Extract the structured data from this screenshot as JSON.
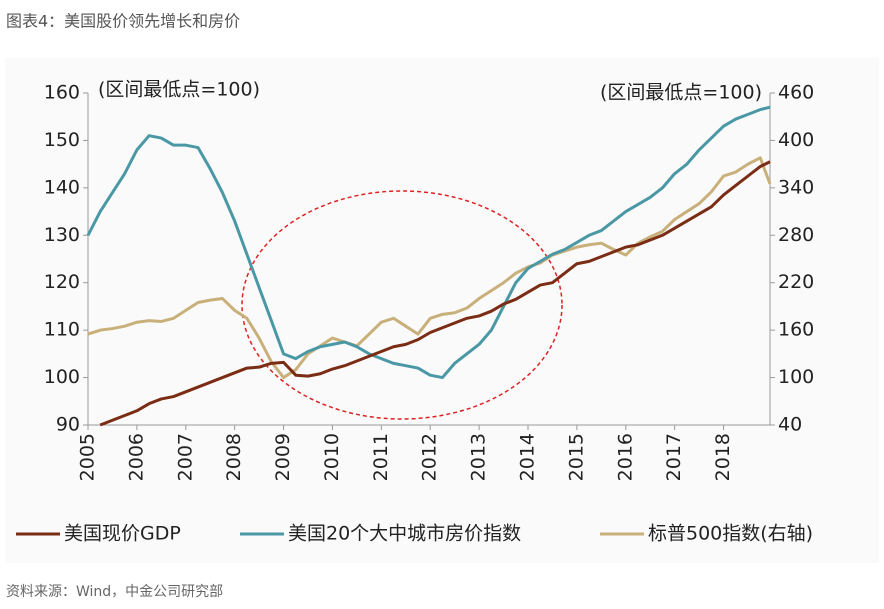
{
  "chart_data": {
    "type": "line",
    "title": "图表4：美国股价领先增长和房价",
    "source": "资料来源：Wind，中金公司研究部",
    "annotations": [
      "(区间最低点=100)",
      "(区间最低点=100)"
    ],
    "x": [
      2005,
      2005.25,
      2005.5,
      2005.75,
      2006,
      2006.25,
      2006.5,
      2006.75,
      2007,
      2007.25,
      2007.5,
      2007.75,
      2008,
      2008.25,
      2008.5,
      2008.75,
      2009,
      2009.25,
      2009.5,
      2009.75,
      2010,
      2010.25,
      2010.5,
      2010.75,
      2011,
      2011.25,
      2011.5,
      2011.75,
      2012,
      2012.25,
      2012.5,
      2012.75,
      2013,
      2013.25,
      2013.5,
      2013.75,
      2014,
      2014.25,
      2014.5,
      2014.75,
      2015,
      2015.25,
      2015.5,
      2015.75,
      2016,
      2016.25,
      2016.5,
      2016.75,
      2017,
      2017.25,
      2017.5,
      2017.75,
      2018,
      2018.25,
      2018.5,
      2018.75,
      2018.95
    ],
    "xlim": [
      2005,
      2018.95
    ],
    "xticks": [
      2005,
      2006,
      2007,
      2008,
      2009,
      2010,
      2011,
      2012,
      2013,
      2014,
      2015,
      2016,
      2017,
      2018
    ],
    "ylim": [
      90,
      160
    ],
    "yticks": [
      90,
      100,
      110,
      120,
      130,
      140,
      150,
      160
    ],
    "y2lim": [
      40,
      460
    ],
    "y2ticks": [
      40,
      100,
      160,
      220,
      280,
      340,
      400,
      460
    ],
    "series": [
      {
        "name": "美国现价GDP",
        "color": "#7b2c14",
        "values": [
          null,
          90,
          91,
          92,
          93,
          94.5,
          95.5,
          96,
          97,
          98,
          99,
          100,
          101,
          102,
          102.2,
          103,
          103.2,
          100.5,
          100.3,
          100.8,
          101.8,
          102.5,
          103.5,
          104.5,
          105.5,
          106.5,
          107,
          108,
          109.5,
          110.5,
          111.5,
          112.5,
          113,
          114,
          115.5,
          116.5,
          118,
          119.5,
          120,
          122,
          124,
          124.5,
          125.5,
          126.5,
          127.5,
          128,
          129,
          130,
          131.5,
          133,
          134.5,
          136,
          138.5,
          140.5,
          142.5,
          144.5,
          145.5
        ]
      },
      {
        "name": "美国20个大中城市房价指数",
        "color": "#4a98a5",
        "values": [
          130,
          135,
          139,
          143,
          148,
          151,
          150.5,
          149,
          149,
          148.5,
          144,
          139,
          133,
          126,
          119,
          112,
          105,
          104,
          105.5,
          106.5,
          107,
          107.5,
          106.5,
          105,
          104,
          103,
          102.5,
          102,
          100.5,
          100,
          103,
          105,
          107,
          110,
          115,
          120,
          123,
          124.5,
          126,
          127,
          128.5,
          130,
          131,
          133,
          135,
          136.5,
          138,
          140,
          143,
          145,
          148,
          150.5,
          153,
          154.5,
          155.5,
          156.5,
          157
        ]
      },
      {
        "name": "标普500指数(右轴)",
        "color": "#c9b07a",
        "axis": "y2",
        "values": [
          155,
          160,
          162,
          165,
          170,
          172,
          171,
          175,
          185,
          195,
          198,
          200,
          185,
          175,
          150,
          120,
          100,
          110,
          130,
          140,
          150,
          145,
          140,
          155,
          170,
          175,
          165,
          155,
          175,
          180,
          182,
          188,
          200,
          210,
          220,
          232,
          240,
          245,
          255,
          260,
          265,
          268,
          270,
          262,
          255,
          270,
          278,
          285,
          300,
          310,
          320,
          335,
          355,
          360,
          370,
          378,
          345
        ]
      }
    ]
  }
}
